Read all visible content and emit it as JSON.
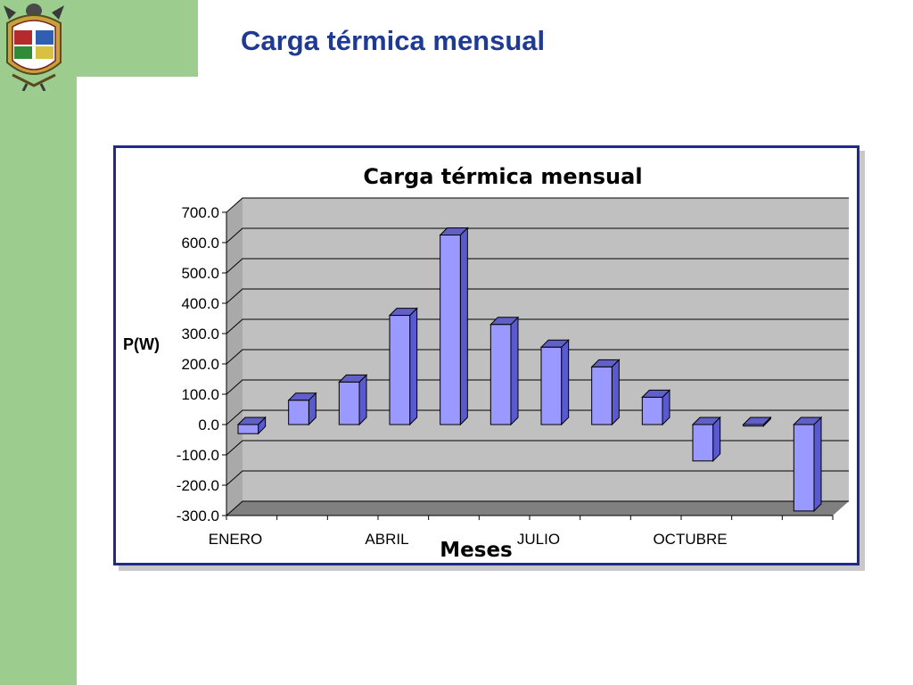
{
  "slide": {
    "title": "Carga térmica mensual",
    "accent_color": "#9ccc8e",
    "title_color": "#1f3a93"
  },
  "logo": {
    "icon": "university-crest-icon"
  },
  "chart_data": {
    "type": "bar",
    "title": "Carga térmica mensual",
    "ylabel": "P(W)",
    "xlabel": "Meses",
    "ylim": [
      -300,
      700
    ],
    "yticks": [
      700,
      600,
      500,
      400,
      300,
      200,
      100,
      0,
      -100,
      -200,
      -300
    ],
    "ytick_labels": [
      "700.0",
      "600.0",
      "500.0",
      "400.0",
      "300.0",
      "200.0",
      "100.0",
      "0.0",
      "-100.0",
      "-200.0",
      "-300.0"
    ],
    "xtick_labels": [
      {
        "label": "ENERO",
        "month": 1
      },
      {
        "label": "ABRIL",
        "month": 4
      },
      {
        "label": "JULIO",
        "month": 7
      },
      {
        "label": "OCTUBRE",
        "month": 10
      }
    ],
    "months": [
      1,
      2,
      3,
      4,
      5,
      6,
      7,
      8,
      9,
      10,
      11,
      12
    ],
    "values": [
      -30,
      80,
      140,
      360,
      625,
      330,
      255,
      190,
      90,
      -120,
      -5,
      -285
    ],
    "grid": true,
    "bar_color": "#9999ff",
    "wall_color": "#c0c0c0",
    "floor_color": "#808080"
  }
}
